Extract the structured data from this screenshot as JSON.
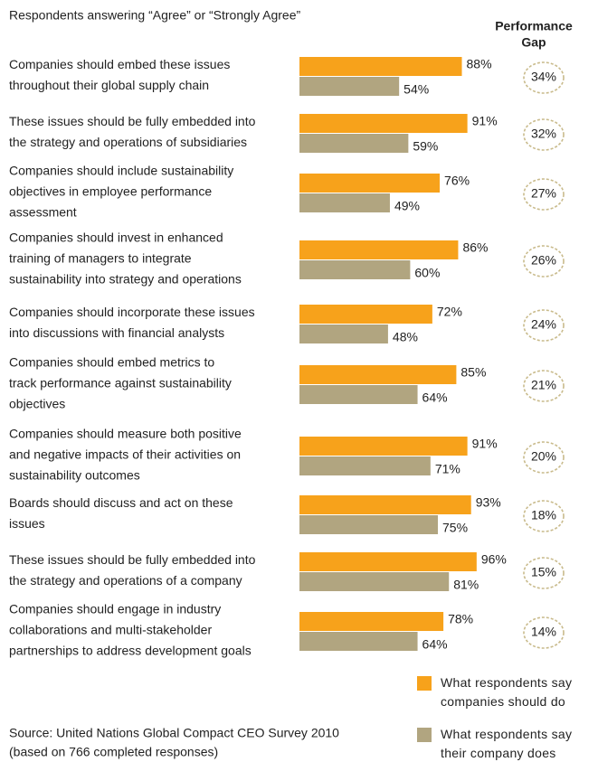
{
  "chart_data": {
    "type": "bar",
    "orientation": "horizontal",
    "subtitle": "Respondents answering “Agree” or “Strongly Agree”",
    "categories": [
      [
        "Companies should embed these issues",
        "throughout their global supply chain"
      ],
      [
        "These issues should be fully embedded into",
        "the strategy and operations of subsidiaries"
      ],
      [
        "Companies should include sustainability",
        "objectives in employee performance",
        "assessment"
      ],
      [
        "Companies should invest in enhanced",
        "training of managers to integrate",
        "sustainability into strategy and operations"
      ],
      [
        "Companies should incorporate these issues",
        "into discussions with financial analysts"
      ],
      [
        "Companies should embed metrics to",
        "track performance against sustainability",
        "objectives"
      ],
      [
        "Companies should measure both positive",
        "and negative impacts of their activities on",
        "sustainability outcomes"
      ],
      [
        "Boards should discuss and act on these",
        "issues"
      ],
      [
        "These issues should be fully embedded into",
        "the strategy and operations of a company"
      ],
      [
        "Companies should engage in industry",
        "collaborations and multi-stakeholder",
        "partnerships to address development goals"
      ]
    ],
    "series": [
      {
        "name": "What respondents say companies should do",
        "color": "#f7a21b",
        "values": [
          88,
          91,
          76,
          86,
          72,
          85,
          91,
          93,
          96,
          78
        ],
        "value_labels": [
          "88%",
          "91%",
          "76%",
          "86%",
          "72%",
          "85%",
          "91%",
          "93%",
          "96%",
          "78%"
        ]
      },
      {
        "name": "What respondents say their company does",
        "color": "#b1a580",
        "values": [
          54,
          59,
          49,
          60,
          48,
          64,
          71,
          75,
          81,
          64
        ],
        "value_labels": [
          "54%",
          "59%",
          "49%",
          "60%",
          "48%",
          "64%",
          "71%",
          "75%",
          "81%",
          "64%"
        ]
      }
    ],
    "gap": {
      "title": [
        "Performance",
        "Gap"
      ],
      "values": [
        34,
        32,
        27,
        26,
        24,
        21,
        20,
        18,
        15,
        14
      ],
      "value_labels": [
        "34%",
        "32%",
        "27%",
        "26%",
        "24%",
        "21%",
        "20%",
        "18%",
        "15%",
        "14%"
      ]
    },
    "source": [
      "Source: United Nations Global Compact CEO Survey 2010",
      "(based on 766 completed responses)"
    ]
  }
}
